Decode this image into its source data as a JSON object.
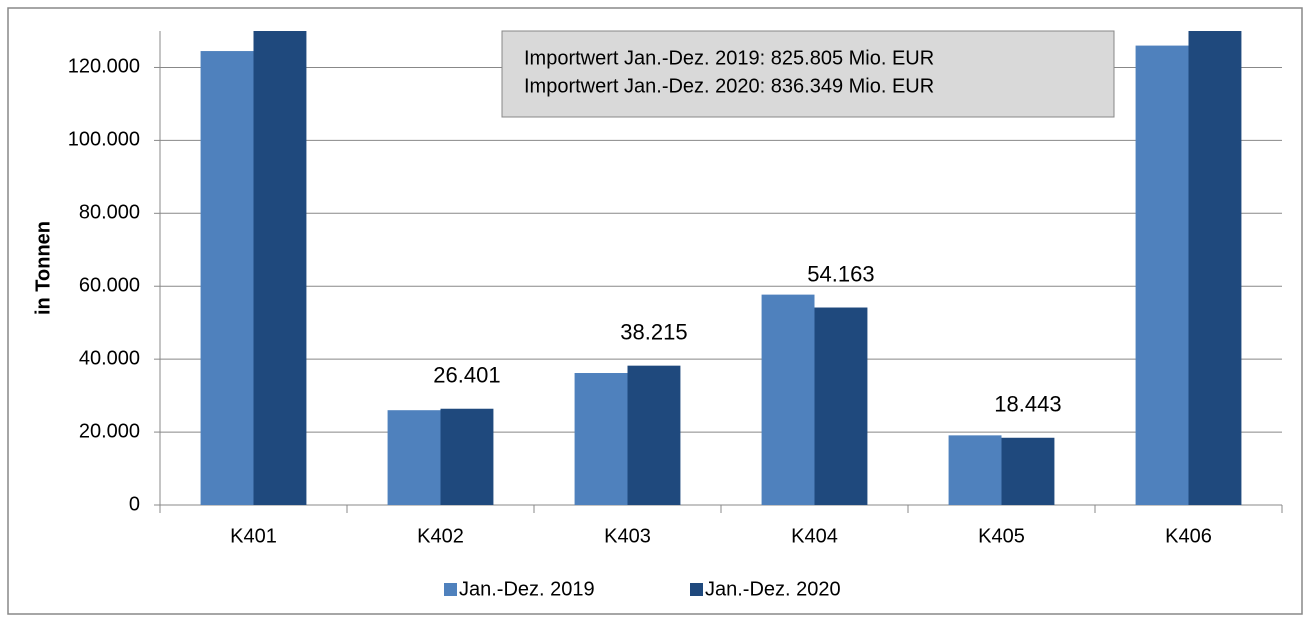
{
  "chart_data": {
    "type": "bar",
    "annotations": [
      "Importwert Jan.-Dez. 2019: 825.805 Mio. EUR",
      "Importwert Jan.-Dez. 2020: 836.349 Mio. EUR"
    ],
    "y_label": "in Tonnen",
    "categories": [
      "K401",
      "K402",
      "K403",
      "K404",
      "K405",
      "K406"
    ],
    "series": [
      {
        "name": "Jan.-Dez. 2019",
        "color": "#4f81bd",
        "values": [
          124500,
          26000,
          36200,
          57700,
          19100,
          126000
        ]
      },
      {
        "name": "Jan.-Dez. 2020",
        "color": "#1f497d",
        "values": [
          130000,
          26401,
          38215,
          54163,
          18443,
          130000
        ],
        "value_labels": [
          null,
          "26.401",
          "38.215",
          "54.163",
          "18.443",
          null
        ]
      }
    ],
    "ylim": [
      0,
      130000
    ],
    "yticks": [
      0,
      {
        "value": 20000,
        "label": "20.000"
      },
      {
        "value": 40000,
        "label": "40.000"
      },
      {
        "value": 60000,
        "label": "60.000"
      },
      {
        "value": 80000,
        "label": "80.000"
      },
      {
        "value": 100000,
        "label": "100.000"
      },
      {
        "value": 120000,
        "label": "120.000"
      }
    ],
    "grid": true,
    "legend": "bottom"
  }
}
